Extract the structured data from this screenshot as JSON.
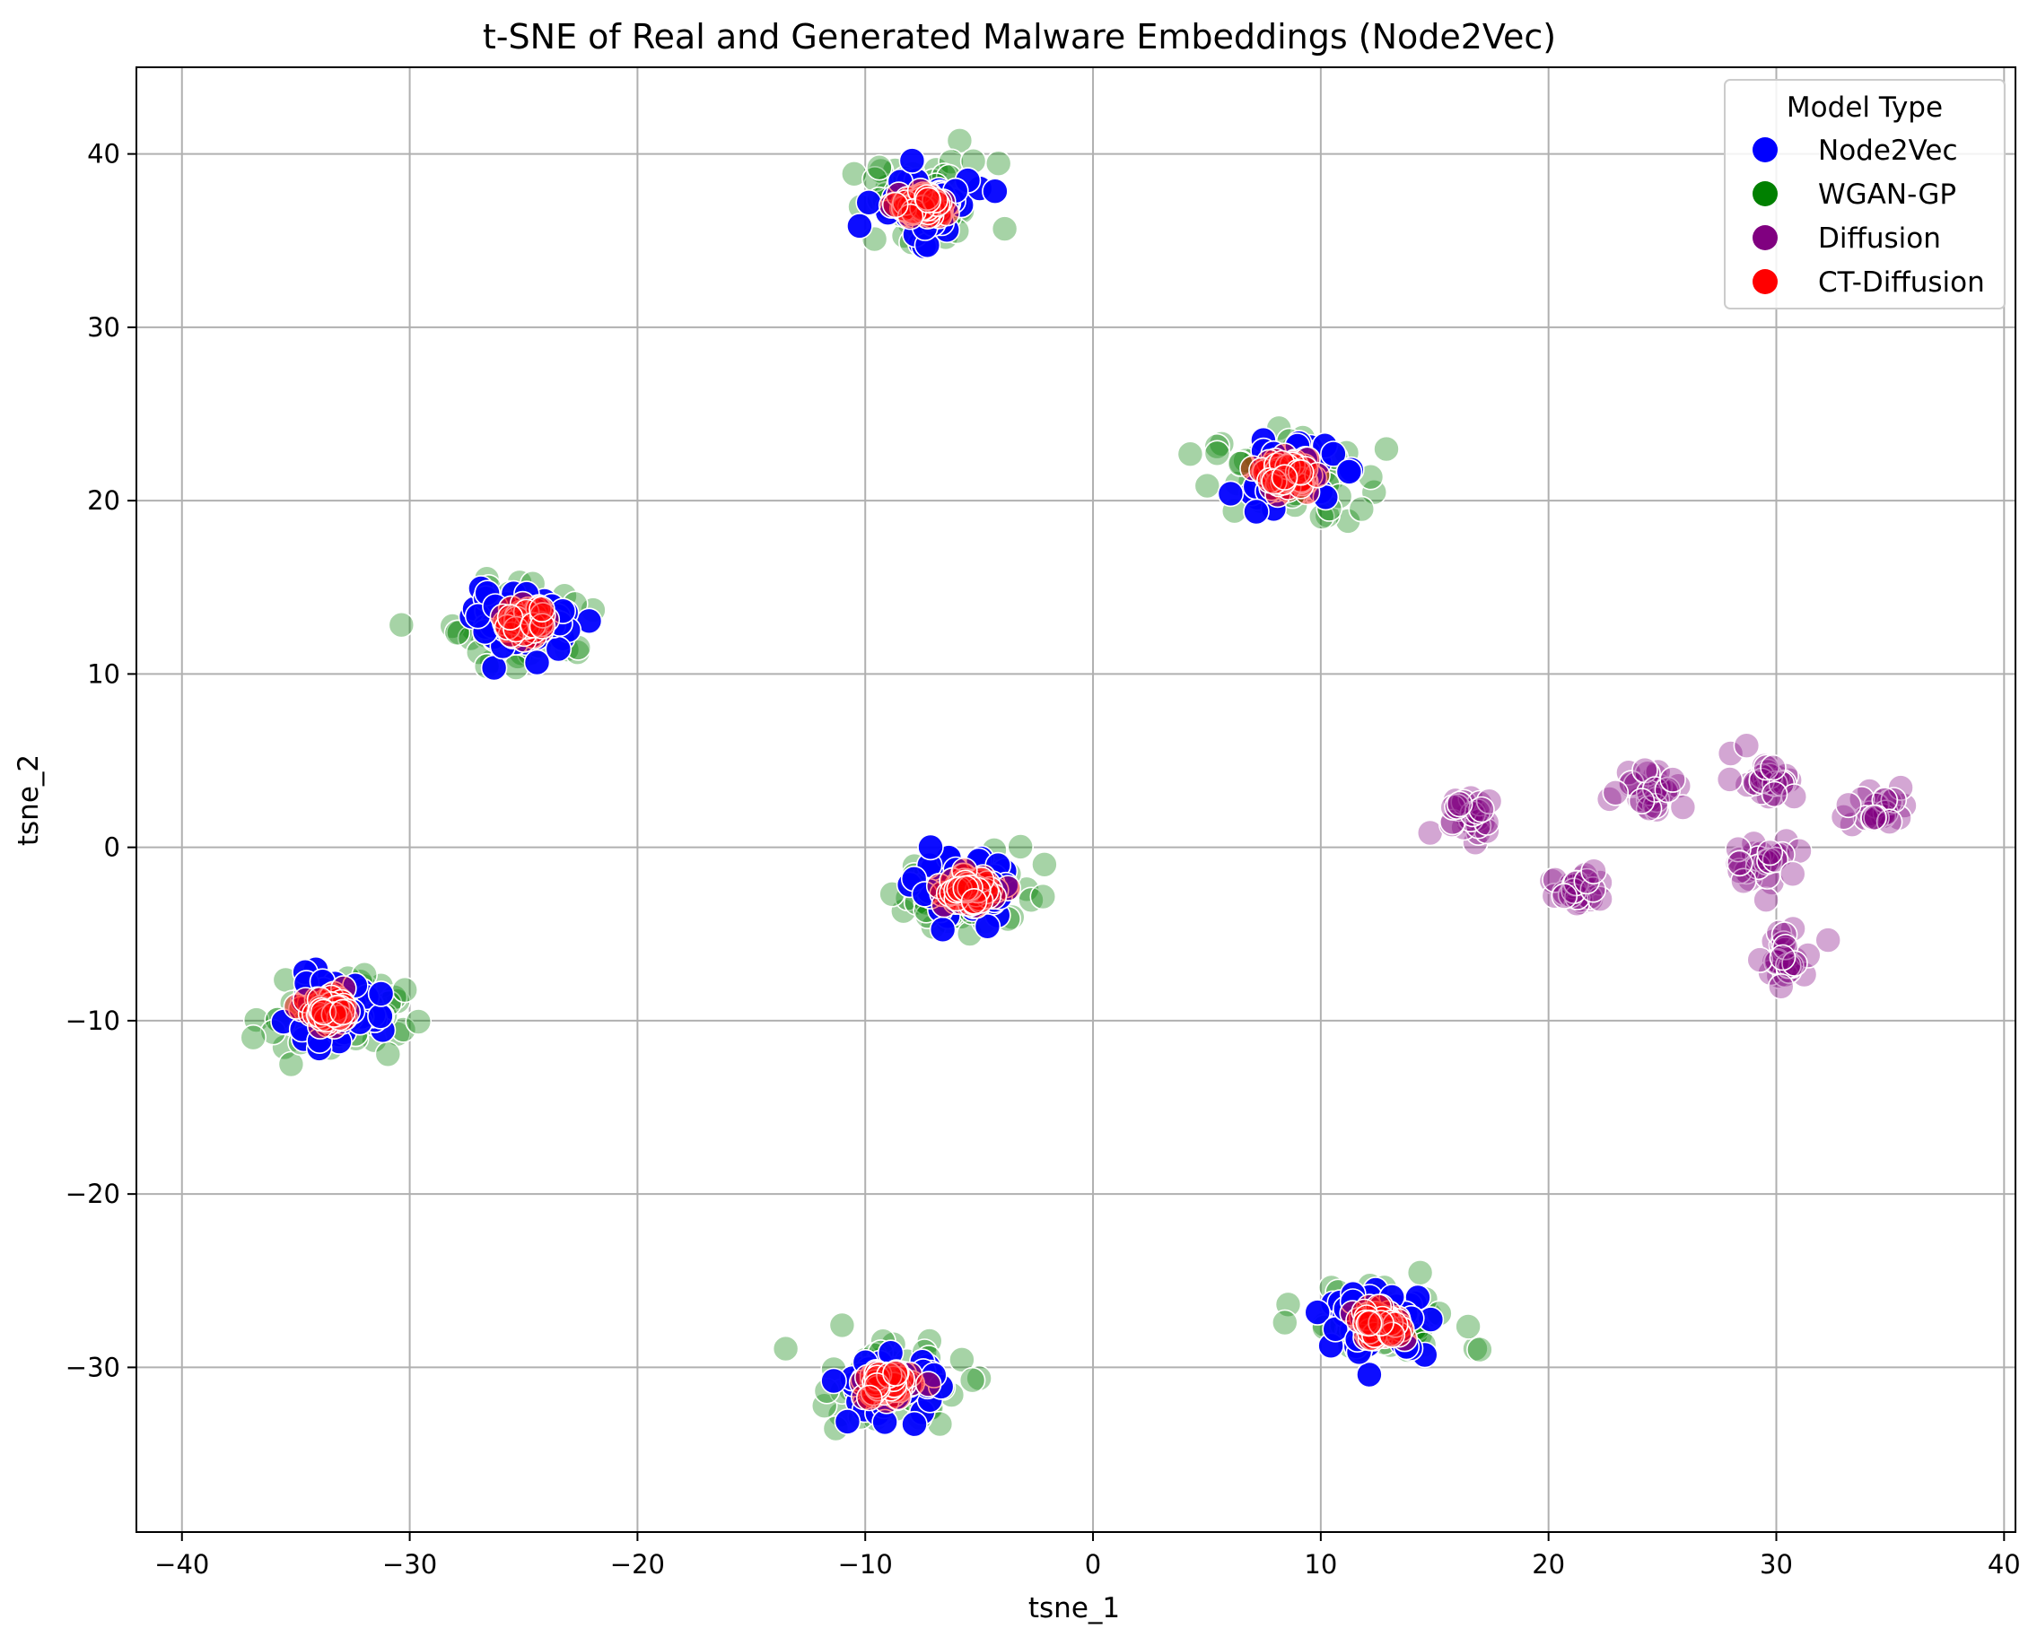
{
  "chart_data": {
    "type": "scatter",
    "title": "t-SNE of Real and Generated Malware Embeddings (Node2Vec)",
    "xlabel": "tsne_1",
    "ylabel": "tsne_2",
    "xlim": [
      -42,
      40.5
    ],
    "ylim": [
      -39.5,
      45
    ],
    "xticks": [
      -40,
      -30,
      -20,
      -10,
      0,
      10,
      20,
      30,
      40
    ],
    "yticks": [
      -30,
      -20,
      -10,
      0,
      10,
      20,
      30,
      40
    ],
    "xtick_labels": [
      "−40",
      "−30",
      "−20",
      "−10",
      "0",
      "10",
      "20",
      "30",
      "40"
    ],
    "ytick_labels": [
      "−30",
      "−20",
      "−10",
      "0",
      "10",
      "20",
      "30",
      "40"
    ],
    "grid": true,
    "legend": {
      "title": "Model Type",
      "position": "top-right",
      "entries": [
        "Node2Vec",
        "WGAN-GP",
        "Diffusion",
        "CT-Diffusion"
      ]
    },
    "series": [
      {
        "name": "WGAN-GP",
        "color": "#008000",
        "alpha": 0.35,
        "clusters": [
          {
            "center": [
              -7.5,
              37
            ],
            "spread": [
              3.0,
              2.3
            ],
            "count": 55
          },
          {
            "center": [
              8.5,
              21.5
            ],
            "spread": [
              3.0,
              2.3
            ],
            "count": 55
          },
          {
            "center": [
              -25,
              13
            ],
            "spread": [
              3.0,
              2.3
            ],
            "count": 55
          },
          {
            "center": [
              -5.5,
              -2.5
            ],
            "spread": [
              3.0,
              2.3
            ],
            "count": 55
          },
          {
            "center": [
              -33.5,
              -9.5
            ],
            "spread": [
              3.0,
              2.3
            ],
            "count": 55
          },
          {
            "center": [
              -9,
              -31
            ],
            "spread": [
              3.0,
              2.3
            ],
            "count": 55
          },
          {
            "center": [
              12.5,
              -27.5
            ],
            "spread": [
              3.0,
              2.3
            ],
            "count": 55
          }
        ]
      },
      {
        "name": "Node2Vec",
        "color": "#0000ff",
        "alpha": 0.95,
        "clusters": [
          {
            "center": [
              -7.5,
              37
            ],
            "spread": [
              2.0,
              1.6
            ],
            "count": 60
          },
          {
            "center": [
              8.5,
              21.5
            ],
            "spread": [
              2.0,
              1.6
            ],
            "count": 60
          },
          {
            "center": [
              -25,
              13
            ],
            "spread": [
              2.0,
              1.6
            ],
            "count": 60
          },
          {
            "center": [
              -5.5,
              -2.5
            ],
            "spread": [
              2.0,
              1.6
            ],
            "count": 60
          },
          {
            "center": [
              -33.5,
              -9.5
            ],
            "spread": [
              2.0,
              1.6
            ],
            "count": 60
          },
          {
            "center": [
              -9,
              -31
            ],
            "spread": [
              2.0,
              1.6
            ],
            "count": 60
          },
          {
            "center": [
              12.5,
              -27.5
            ],
            "spread": [
              2.0,
              1.6
            ],
            "count": 60
          }
        ]
      },
      {
        "name": "Diffusion",
        "color": "#800080",
        "alpha": 0.35,
        "clusters": [
          {
            "center": [
              16.5,
              2.0
            ],
            "spread": [
              1.3,
              1.2
            ],
            "count": 28
          },
          {
            "center": [
              21.5,
              -2.5
            ],
            "spread": [
              1.3,
              1.2
            ],
            "count": 28
          },
          {
            "center": [
              24.5,
              3.5
            ],
            "spread": [
              1.3,
              1.2
            ],
            "count": 28
          },
          {
            "center": [
              29.5,
              4.0
            ],
            "spread": [
              1.3,
              1.2
            ],
            "count": 28
          },
          {
            "center": [
              29.5,
              -0.8
            ],
            "spread": [
              1.3,
              1.2
            ],
            "count": 28
          },
          {
            "center": [
              34.5,
              2.3
            ],
            "spread": [
              1.3,
              1.2
            ],
            "count": 28
          },
          {
            "center": [
              30.5,
              -6.5
            ],
            "spread": [
              1.3,
              1.2
            ],
            "count": 28
          }
        ]
      },
      {
        "name": "CT-Diffusion",
        "color": "#ff0000",
        "alpha": 0.45,
        "clusters": [
          {
            "center": [
              -7.5,
              37
            ],
            "spread": [
              0.9,
              0.75
            ],
            "count": 70
          },
          {
            "center": [
              8.5,
              21.5
            ],
            "spread": [
              0.9,
              0.75
            ],
            "count": 70
          },
          {
            "center": [
              -25,
              13
            ],
            "spread": [
              0.9,
              0.75
            ],
            "count": 70
          },
          {
            "center": [
              -5.5,
              -2.5
            ],
            "spread": [
              0.9,
              0.75
            ],
            "count": 70
          },
          {
            "center": [
              -33.5,
              -9.5
            ],
            "spread": [
              0.9,
              0.75
            ],
            "count": 70
          },
          {
            "center": [
              -9,
              -31
            ],
            "spread": [
              0.9,
              0.75
            ],
            "count": 70
          },
          {
            "center": [
              12.5,
              -27.5
            ],
            "spread": [
              0.9,
              0.75
            ],
            "count": 70
          }
        ]
      }
    ]
  }
}
